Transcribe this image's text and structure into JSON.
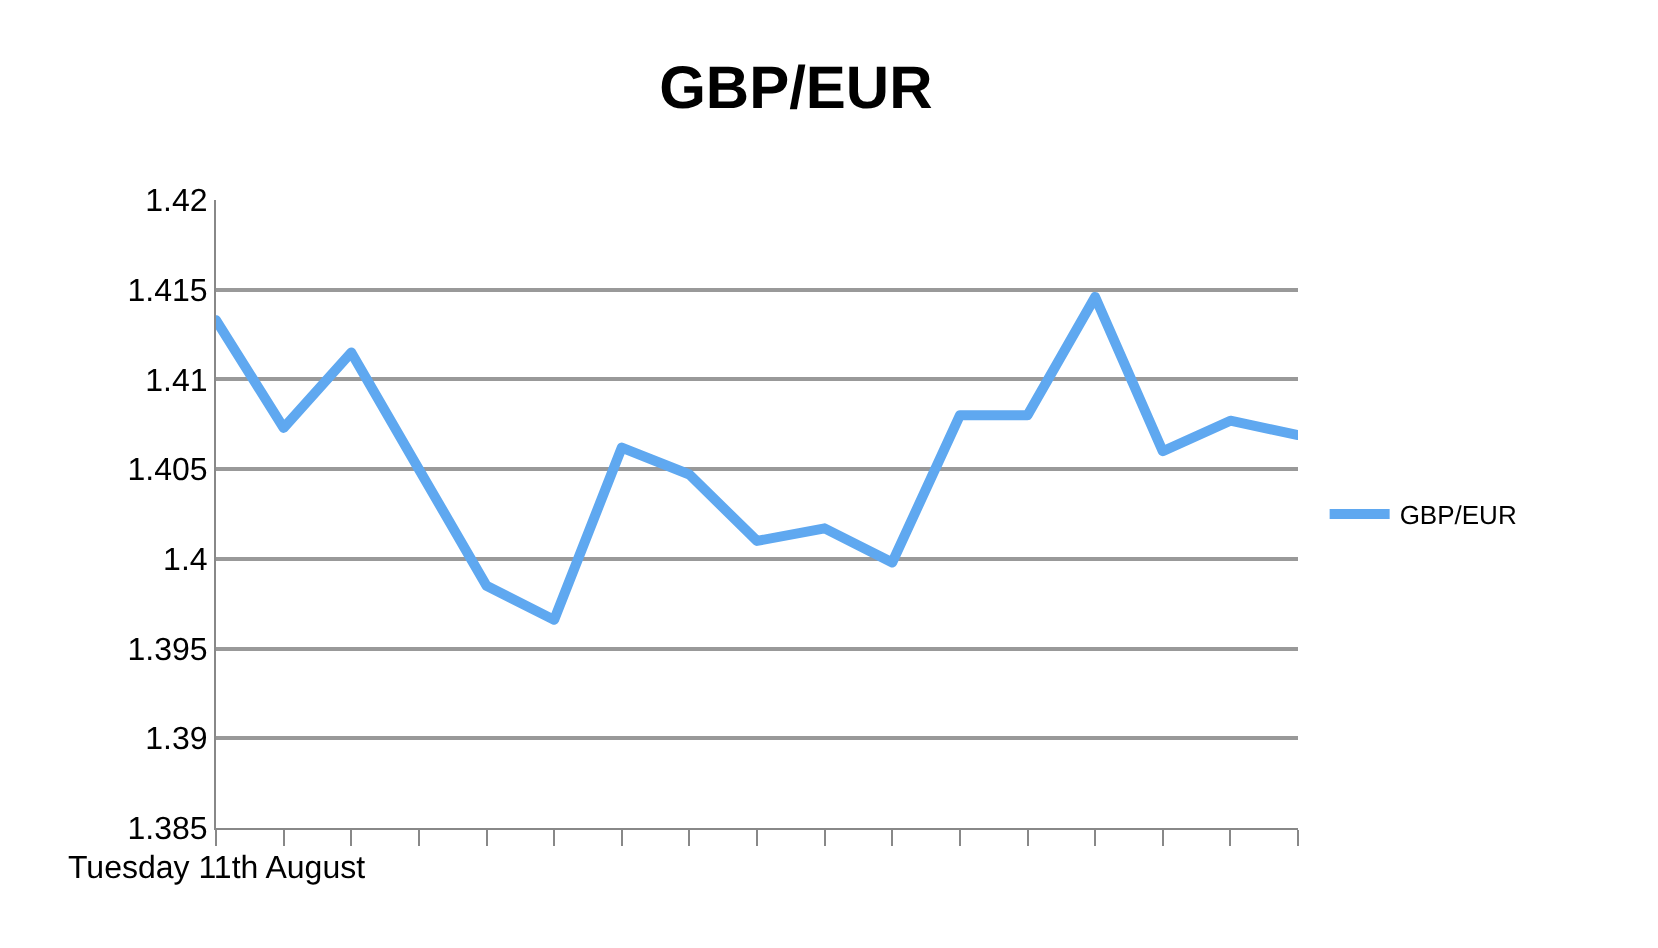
{
  "chart_data": {
    "type": "line",
    "title": "GBP/EUR",
    "categories": [
      "Tuesday 11th August",
      null,
      null,
      null,
      null,
      null,
      null,
      null,
      null,
      null,
      null,
      null,
      null,
      null,
      null,
      null,
      null
    ],
    "series": [
      {
        "name": "GBP/EUR",
        "color": "#5fa8f0",
        "values": [
          1.4133,
          1.4073,
          1.4115,
          1.405,
          1.3985,
          1.3966,
          1.4062,
          1.4047,
          1.401,
          1.4017,
          1.3998,
          1.408,
          1.408,
          1.4146,
          1.406,
          1.4077,
          1.4069
        ]
      }
    ],
    "ylim": [
      1.385,
      1.42
    ],
    "yticks": [
      1.385,
      1.39,
      1.395,
      1.4,
      1.405,
      1.41,
      1.415,
      1.42
    ],
    "grid": "y",
    "legend": "right",
    "marker": "none",
    "line_style": "solid"
  }
}
